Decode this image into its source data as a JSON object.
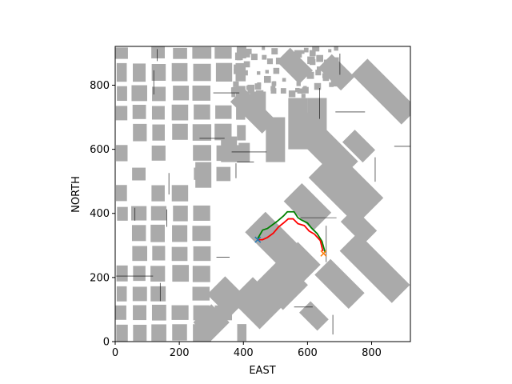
{
  "chart_data": {
    "type": "line",
    "title": "",
    "xlabel": "EAST",
    "ylabel": "NORTH",
    "xlim": [
      0,
      921
    ],
    "ylim": [
      0,
      921
    ],
    "xticks": [
      0,
      200,
      400,
      600,
      800
    ],
    "yticks": [
      0,
      200,
      400,
      600,
      800
    ],
    "grid": false,
    "legend": "none",
    "background_map": {
      "obstacle_color": "#aaaaaa",
      "free_color": "#ffffff",
      "line_color": "#000000"
    },
    "series": [
      {
        "color": "#008000",
        "x": [
          445,
          460,
          475,
          505,
          525,
          537,
          558,
          570,
          580,
          600,
          612,
          630,
          645,
          655
        ],
        "y": [
          322,
          348,
          353,
          375,
          392,
          405,
          405,
          387,
          380,
          370,
          355,
          337,
          313,
          278
        ]
      },
      {
        "color": "#ff0000",
        "x": [
          445,
          460,
          475,
          493,
          510,
          525,
          540,
          555,
          570,
          590,
          605,
          622,
          640,
          648
        ],
        "y": [
          318,
          318,
          325,
          338,
          358,
          370,
          383,
          383,
          368,
          362,
          345,
          335,
          315,
          282
        ]
      }
    ],
    "markers": [
      {
        "x": 445,
        "y": 318,
        "color": "#1f77b4"
      },
      {
        "x": 650,
        "y": 275,
        "color": "#ff7f0e"
      }
    ]
  }
}
